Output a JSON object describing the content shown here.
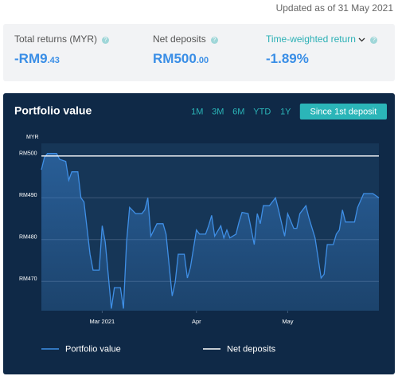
{
  "header": {
    "updated": "Updated as of 31 May 2021"
  },
  "summary": [
    {
      "label": "Total returns (MYR)",
      "value_main": "-RM9",
      "value_small": ".43"
    },
    {
      "label": "Net deposits",
      "value_main": "RM500",
      "value_small": ".00"
    },
    {
      "label": "Time-weighted return",
      "value_main": "-1.89%",
      "value_small": ""
    }
  ],
  "ranges": [
    "1M",
    "3M",
    "6M",
    "YTD",
    "1Y",
    "Since 1st deposit"
  ],
  "chart_data": {
    "type": "line",
    "title": "Portfolio value",
    "y_unit": "MYR",
    "xlim": [
      40,
      151
    ],
    "xticks": [
      {
        "value": 60,
        "label": "Mar 2021"
      },
      {
        "value": 91,
        "label": "Apr"
      },
      {
        "value": 121,
        "label": "May"
      }
    ],
    "ylim": [
      463,
      503
    ],
    "yticks": [
      {
        "value": 470,
        "label": "RM470"
      },
      {
        "value": 480,
        "label": "RM480"
      },
      {
        "value": 490,
        "label": "RM490"
      },
      {
        "value": 500,
        "label": "RM500"
      }
    ],
    "grid": true,
    "series": [
      {
        "name": "Portfolio value",
        "color": "#3f8fe6",
        "x": [
          40,
          41,
          42,
          45,
          46,
          48,
          49,
          50,
          52,
          53,
          54,
          56,
          57,
          59,
          60,
          61,
          63,
          64,
          66,
          67,
          68,
          69,
          71,
          73,
          74,
          75,
          76,
          78,
          80,
          81,
          83,
          84,
          85,
          87,
          88,
          89,
          91,
          92,
          94,
          95,
          96,
          97,
          99,
          100,
          101,
          102,
          104,
          105,
          106,
          108,
          110,
          111,
          112,
          113,
          115,
          117,
          118,
          120,
          121,
          123,
          124,
          125,
          127,
          128,
          130,
          132,
          133,
          134,
          136,
          137,
          138,
          139,
          140,
          143,
          144,
          146,
          149,
          151
        ],
        "values": [
          496.7,
          499.6,
          500.6,
          500.6,
          499.2,
          498.7,
          494.2,
          496.2,
          496.2,
          490,
          489,
          476.5,
          472.7,
          472.7,
          483.3,
          479.4,
          463.5,
          468.5,
          468.5,
          463.5,
          479.4,
          487.7,
          486.2,
          486.2,
          487.1,
          490,
          480.8,
          483.8,
          483.8,
          481.3,
          466.5,
          469.8,
          476.5,
          476.5,
          470.8,
          473.3,
          482.3,
          481.3,
          481.3,
          483.3,
          485.8,
          480.8,
          483.3,
          480.4,
          482.3,
          480.4,
          481.3,
          484.2,
          486.5,
          486.2,
          478.8,
          486.2,
          483.8,
          488.1,
          488.1,
          490,
          487.1,
          480.8,
          486.2,
          482.7,
          482.7,
          486.2,
          488.1,
          485.2,
          480.4,
          470.8,
          471.7,
          478.8,
          478.8,
          481.3,
          482.3,
          487.1,
          484.2,
          484.2,
          487.7,
          491,
          491,
          490
        ]
      },
      {
        "name": "Net deposits",
        "color": "#ffffff",
        "x": [
          40,
          151
        ],
        "values": [
          500,
          500
        ]
      }
    ]
  }
}
